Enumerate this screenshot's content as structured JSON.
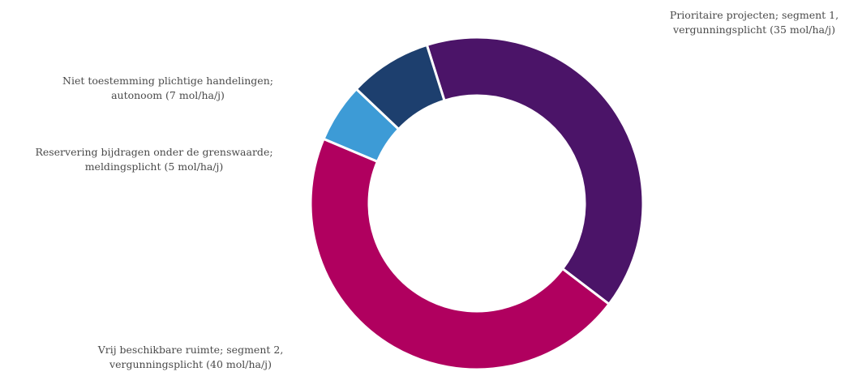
{
  "chart_data": {
    "type": "pie",
    "variant": "donut",
    "title": "",
    "unit": "mol/ha/j",
    "slices": [
      {
        "name": "Prioritaire projecten; segment 1, vergunningsplicht (35 mol/ha/j)",
        "label_lines": [
          "Prioritaire projecten; segment 1,",
          "vergunningsplicht (35 mol/ha/j)"
        ],
        "value": 35,
        "color": "#4b1468"
      },
      {
        "name": "Vrij beschikbare ruimte; segment 2, vergunningsplicht (40 mol/ha/j)",
        "label_lines": [
          "Vrij beschikbare ruimte; segment 2,",
          "vergunningsplicht (40 mol/ha/j)"
        ],
        "value": 40,
        "color": "#b0005f"
      },
      {
        "name": "Reservering bijdragen onder de grenswaarde; meldingsplicht (5 mol/ha/j)",
        "label_lines": [
          "Reservering bijdragen onder de grenswaarde;",
          "meldingsplicht (5 mol/ha/j)"
        ],
        "value": 5,
        "color": "#3d9bd6"
      },
      {
        "name": "Niet toestemming plichtige handelingen; autonoom (7 mol/ha/j)",
        "label_lines": [
          "Niet toestemming plichtige handelingen;",
          "autonoom (7 mol/ha/j)"
        ],
        "value": 7,
        "color": "#1d3f6e"
      }
    ],
    "legend": "none"
  }
}
